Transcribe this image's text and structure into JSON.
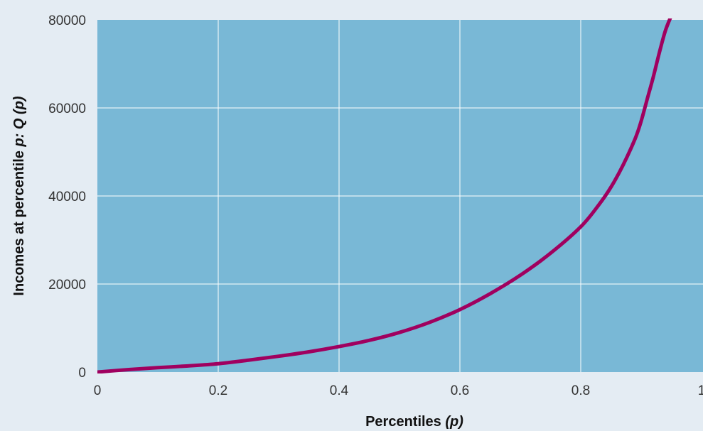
{
  "chart_data": {
    "type": "line",
    "title": "",
    "xlabel": {
      "prefix": "Percentiles ",
      "italic": "(p)"
    },
    "ylabel": {
      "prefix": "Incomes at percentile ",
      "italic": "p: Q (p)"
    },
    "xlim": [
      0,
      1
    ],
    "ylim": [
      0,
      80000
    ],
    "x_ticks": [
      0,
      0.2,
      0.4,
      0.6,
      0.8,
      1
    ],
    "x_tick_labels": [
      "0",
      "0.2",
      "0.4",
      "0.6",
      "0.8",
      "1"
    ],
    "y_ticks": [
      0,
      20000,
      40000,
      60000,
      80000
    ],
    "y_tick_labels": [
      "0",
      "20000",
      "40000",
      "60000",
      "80000"
    ],
    "grid": true,
    "legend": "none",
    "colors": {
      "plot_background": "#79b8d6",
      "page_background": "#e4ecf3",
      "grid": "#ffffff",
      "line": "#a0005f"
    },
    "series": [
      {
        "x": [
          0,
          0.05,
          0.1,
          0.15,
          0.2,
          0.25,
          0.3,
          0.35,
          0.4,
          0.45,
          0.5,
          0.55,
          0.6,
          0.65,
          0.7,
          0.75,
          0.8,
          0.83,
          0.85,
          0.87,
          0.89,
          0.9,
          0.91,
          0.92,
          0.93,
          0.94,
          0.95
        ],
        "values": [
          0,
          550,
          1000,
          1400,
          1900,
          2700,
          3600,
          4600,
          5800,
          7200,
          9000,
          11300,
          14200,
          17800,
          22000,
          27000,
          33000,
          38000,
          42000,
          47000,
          53000,
          57000,
          62000,
          67000,
          72500,
          77500,
          81000
        ]
      }
    ]
  }
}
